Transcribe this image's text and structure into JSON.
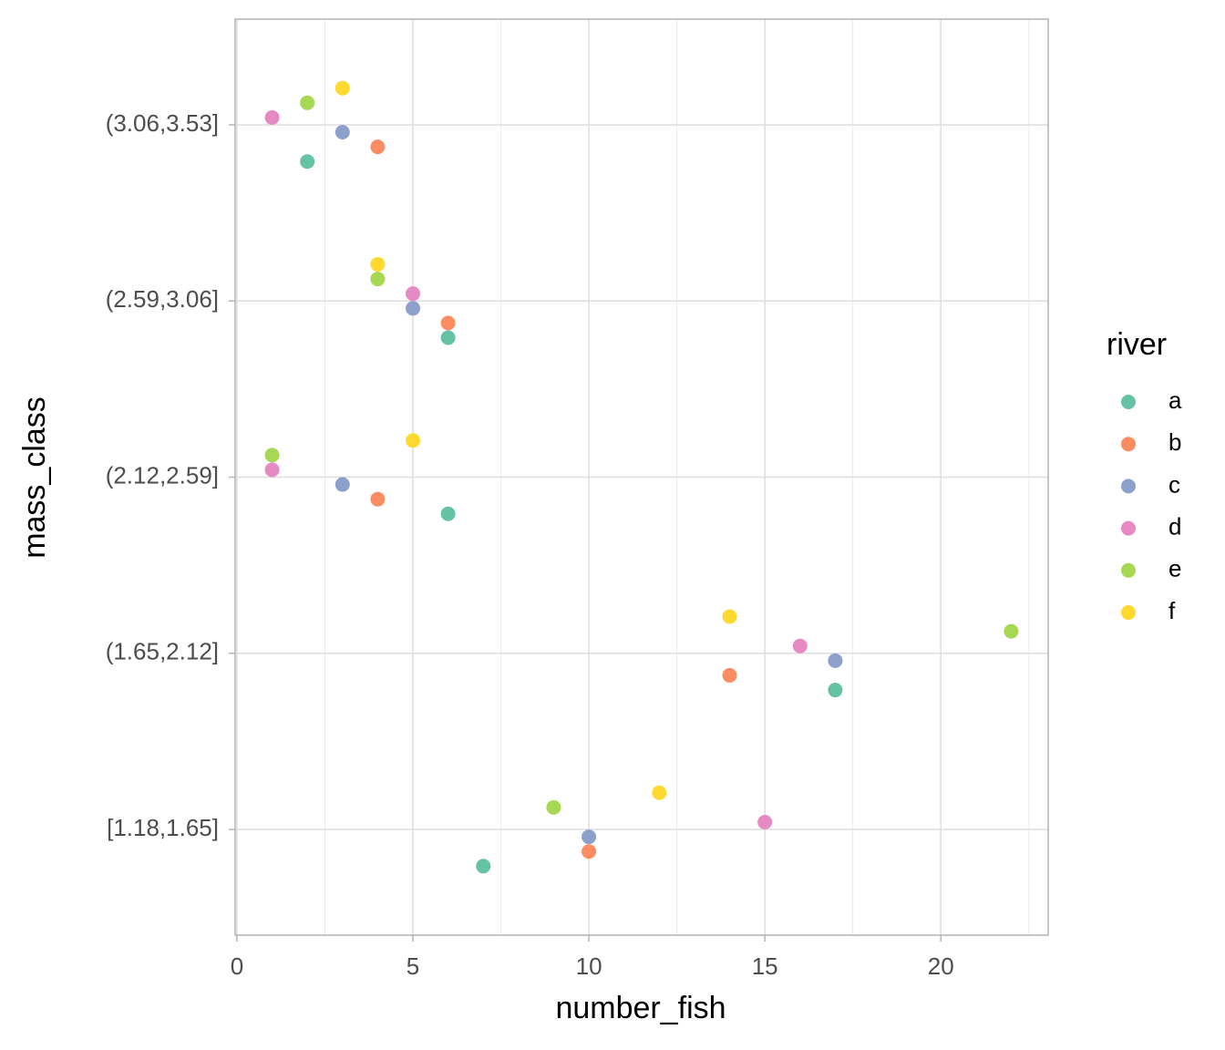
{
  "chart_data": {
    "type": "dot",
    "x_label": "number_fish",
    "y_label": "mass_class",
    "legend_title": "river",
    "legend_position": "right",
    "grid": true,
    "categories": [
      "[1.18,1.65]",
      "(1.65,2.12]",
      "(2.12,2.59]",
      "(2.59,3.06]",
      "(3.06,3.53]"
    ],
    "xlim": [
      -0.05,
      23.05
    ],
    "xticks": [
      0,
      5,
      10,
      15,
      20
    ],
    "series": [
      {
        "name": "a",
        "color": "#66c2a5",
        "values": [
          7,
          17,
          6,
          6,
          2
        ]
      },
      {
        "name": "b",
        "color": "#fc8d62",
        "values": [
          10,
          14,
          4,
          6,
          4
        ]
      },
      {
        "name": "c",
        "color": "#8da0cb",
        "values": [
          10,
          17,
          3,
          5,
          3
        ]
      },
      {
        "name": "d",
        "color": "#e78ac3",
        "values": [
          15,
          16,
          1,
          5,
          1
        ]
      },
      {
        "name": "e",
        "color": "#a6d854",
        "values": [
          9,
          22,
          1,
          4,
          2
        ]
      },
      {
        "name": "f",
        "color": "#ffd92f",
        "values": [
          12,
          14,
          5,
          4,
          3
        ]
      }
    ]
  }
}
